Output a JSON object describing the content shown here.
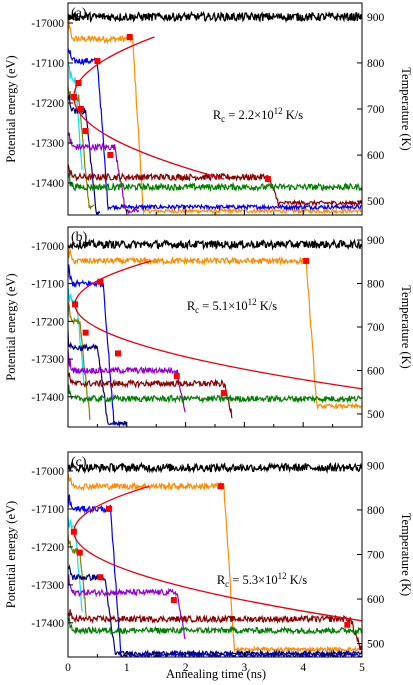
{
  "chart_data": [
    {
      "type": "line",
      "panel_label": "(a)",
      "ylabel_left": "Potential energy (eV)",
      "ylabel_right": "Temperature (K)",
      "xlim": [
        0,
        5
      ],
      "ylim_left": [
        -17480,
        -16950
      ],
      "ylim_right": [
        470,
        930
      ],
      "x_ticks": [],
      "y_ticks_left": [
        "-17000",
        "-17100",
        "-17200",
        "-17300",
        "-17400"
      ],
      "y_ticks_right": [
        "900",
        "800",
        "700",
        "600",
        "500"
      ],
      "annotation": {
        "base": "R",
        "sub": "c",
        "text": " = 2.2×10",
        "sup": "12",
        "unit": " K/s"
      },
      "temperature": 900,
      "fit_points": [
        [
          0.1,
          -17185
        ],
        [
          0.18,
          -17150
        ],
        [
          0.22,
          -17215
        ],
        [
          0.3,
          -17270
        ],
        [
          0.5,
          -17095
        ],
        [
          0.72,
          -17330
        ],
        [
          1.05,
          -17035
        ],
        [
          3.4,
          -17390
        ]
      ],
      "series": [
        {
          "color": "#ff8c00",
          "plateau": -17040,
          "drop": 1.1,
          "final": -17470,
          "end": 5
        },
        {
          "color": "#0000ff",
          "plateau": -17095,
          "drop": 0.5,
          "final": -17460,
          "end": 5
        },
        {
          "color": "#00e5ff",
          "plateau": -17140,
          "drop": 0.12,
          "final": -17470,
          "end": 0.25
        },
        {
          "color": "#808000",
          "plateau": -17190,
          "drop": 0.18,
          "final": -17460,
          "end": 0.45
        },
        {
          "color": "#000080",
          "plateau": -17220,
          "drop": 0.3,
          "final": -17475,
          "end": 0.55
        },
        {
          "color": "#9400d3",
          "plateau": -17310,
          "drop": 0.8,
          "final": -17470,
          "end": 1.2
        },
        {
          "color": "#8b0000",
          "plateau": -17385,
          "drop": 3.4,
          "final": -17450,
          "end": 5
        },
        {
          "color": "#008000",
          "plateau": -17410,
          "drop": 99,
          "final": -17420,
          "end": 5
        }
      ]
    },
    {
      "type": "line",
      "panel_label": "(b)",
      "ylabel_left": "Potential energy (eV)",
      "ylabel_right": "Temperature (K)",
      "xlim": [
        0,
        5
      ],
      "ylim_left": [
        -17480,
        -16950
      ],
      "ylim_right": [
        470,
        930
      ],
      "x_ticks": [],
      "y_ticks_left": [
        "-17000",
        "-17100",
        "-17200",
        "-17300",
        "-17400"
      ],
      "y_ticks_right": [
        "900",
        "800",
        "700",
        "600",
        "500"
      ],
      "annotation": {
        "base": "R",
        "sub": "c",
        "text": " = 5.1×10",
        "sup": "12",
        "unit": " K/s"
      },
      "temperature": 890,
      "fit_points": [
        [
          0.12,
          -17155
        ],
        [
          0.3,
          -17230
        ],
        [
          0.55,
          -17095
        ],
        [
          0.85,
          -17285
        ],
        [
          1.85,
          -17345
        ],
        [
          2.65,
          -17390
        ],
        [
          4.05,
          -17040
        ]
      ],
      "series": [
        {
          "color": "#ff8c00",
          "plateau": -17040,
          "drop": 4.05,
          "final": -17425,
          "end": 5
        },
        {
          "color": "#0000ff",
          "plateau": -17100,
          "drop": 0.6,
          "final": -17470,
          "end": 1.0
        },
        {
          "color": "#00e5ff",
          "plateau": -17150,
          "drop": 0.15,
          "final": -17470,
          "end": 0.28
        },
        {
          "color": "#808000",
          "plateau": -17200,
          "drop": 0.2,
          "final": -17470,
          "end": 0.38
        },
        {
          "color": "#000080",
          "plateau": -17270,
          "drop": 0.5,
          "final": -17470,
          "end": 1.0
        },
        {
          "color": "#9400d3",
          "plateau": -17330,
          "drop": 1.85,
          "final": -17470,
          "end": 2.0
        },
        {
          "color": "#8b0000",
          "plateau": -17365,
          "drop": 2.65,
          "final": -17470,
          "end": 2.8
        },
        {
          "color": "#008000",
          "plateau": -17405,
          "drop": 99,
          "final": -17420,
          "end": 5
        }
      ]
    },
    {
      "type": "line",
      "panel_label": "(c)",
      "ylabel_left": "Potential energy (eV)",
      "ylabel_right": "Temperature (K)",
      "xlabel": "Annealing time (ns)",
      "xlim": [
        0,
        5
      ],
      "ylim_left": [
        -17490,
        -16950
      ],
      "ylim_right": [
        470,
        930
      ],
      "x_ticks": [
        "0",
        "1",
        "2",
        "3",
        "4",
        "5"
      ],
      "y_ticks_left": [
        "-17000",
        "-17100",
        "-17200",
        "-17300",
        "-17400"
      ],
      "y_ticks_right": [
        "900",
        "800",
        "700",
        "600",
        "500"
      ],
      "annotation": {
        "base": "R",
        "sub": "c",
        "text": " = 5.3×10",
        "sup": "12",
        "unit": " K/s"
      },
      "temperature": 895,
      "fit_points": [
        [
          0.1,
          -17160
        ],
        [
          0.2,
          -17215
        ],
        [
          0.55,
          -17280
        ],
        [
          0.7,
          -17100
        ],
        [
          1.8,
          -17340
        ],
        [
          2.6,
          -17040
        ],
        [
          4.75,
          -17405
        ]
      ],
      "series": [
        {
          "color": "#ff8c00",
          "plateau": -17040,
          "drop": 2.65,
          "final": -17470,
          "end": 5
        },
        {
          "color": "#0000ff",
          "plateau": -17100,
          "drop": 0.72,
          "final": -17485,
          "end": 5
        },
        {
          "color": "#00e5ff",
          "plateau": -17150,
          "drop": 0.12,
          "final": -17485,
          "end": 0.25
        },
        {
          "color": "#808000",
          "plateau": -17210,
          "drop": 0.2,
          "final": -17480,
          "end": 0.32
        },
        {
          "color": "#000080",
          "plateau": -17280,
          "drop": 0.62,
          "final": -17480,
          "end": 5
        },
        {
          "color": "#9400d3",
          "plateau": -17320,
          "drop": 1.85,
          "final": -17480,
          "end": 2.0
        },
        {
          "color": "#8b0000",
          "plateau": -17390,
          "drop": 4.8,
          "final": -17470,
          "end": 5
        },
        {
          "color": "#008000",
          "plateau": -17420,
          "drop": 99,
          "final": -17425,
          "end": 5
        }
      ]
    }
  ],
  "colors": {
    "fit_curve": "#e8000b",
    "fit_marker": "#ff0000",
    "temperature": "#000000"
  }
}
